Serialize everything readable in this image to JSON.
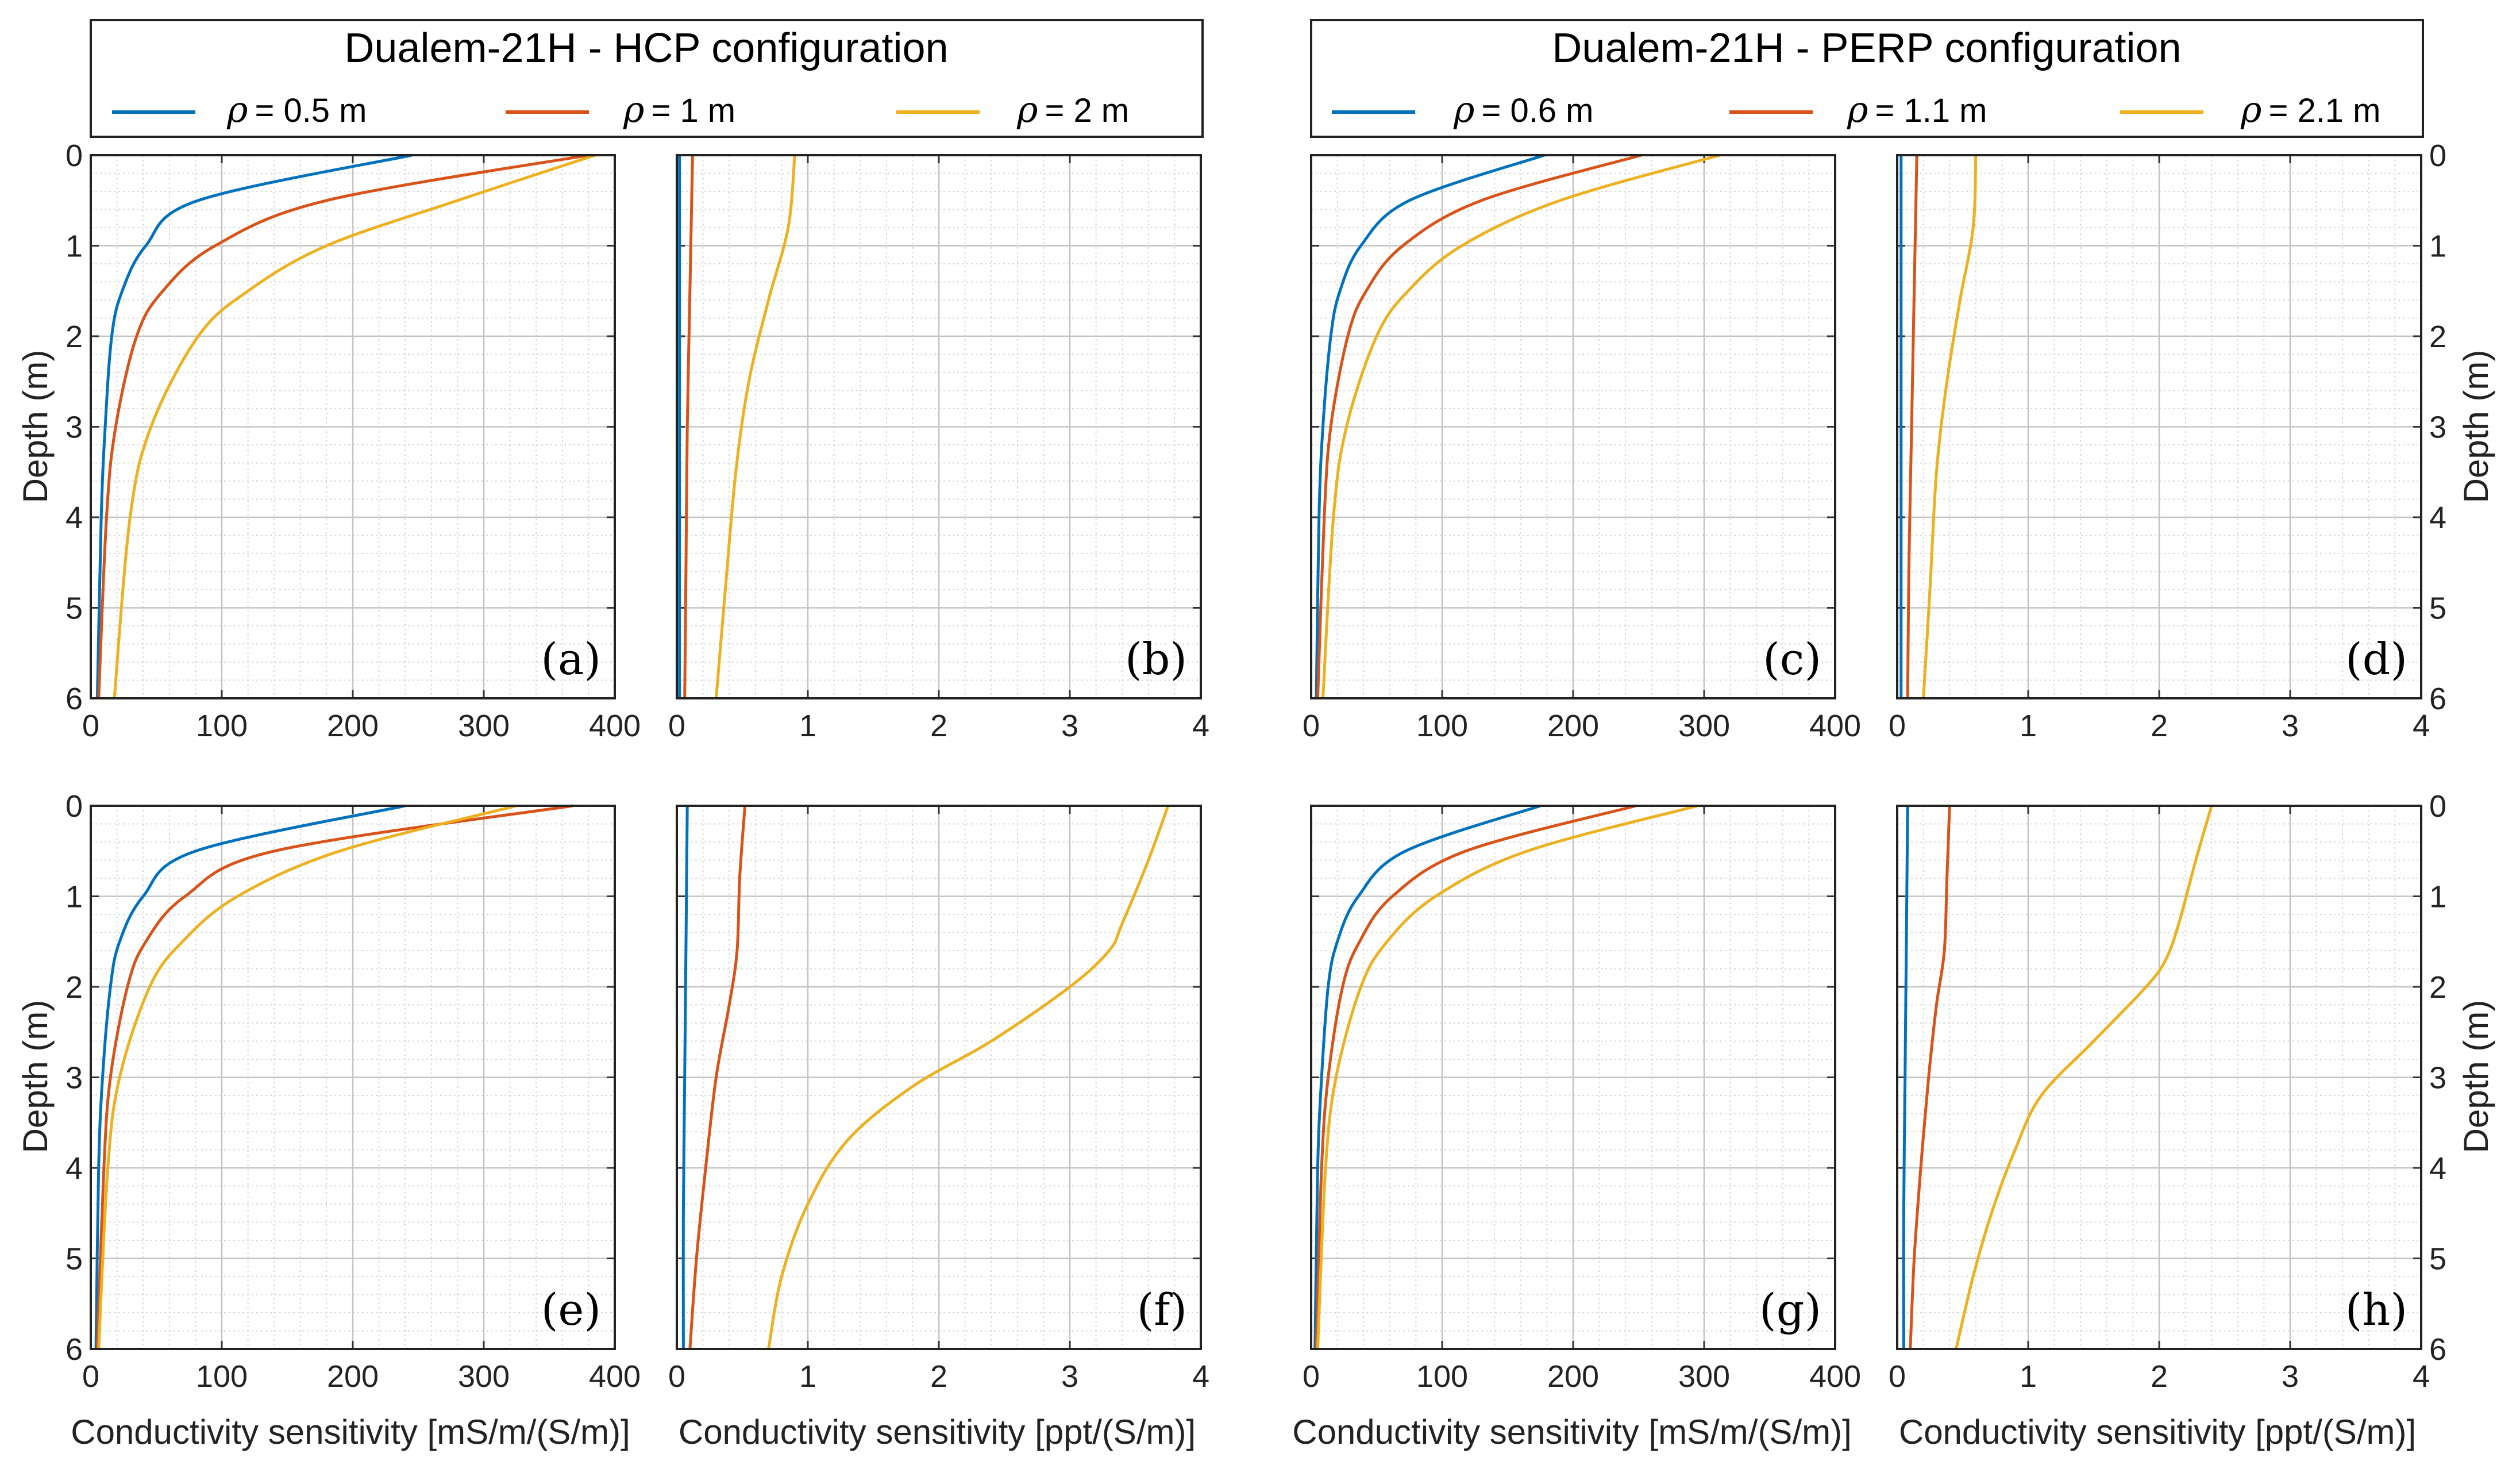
{
  "figure": {
    "left_panel_title": "Dualem-21H - HCP configuration",
    "right_panel_title": "Dualem-21H - PERP configuration",
    "ylabel": "Depth (m)",
    "xlabel_ecs": "Conductivity sensitivity [mS/m/(S/m)]",
    "xlabel_ppt": "Conductivity sensitivity [ppt/(S/m)]",
    "colors": {
      "blue": "#0072BD",
      "red": "#D95319",
      "yellow": "#EDB120"
    }
  },
  "legends": {
    "hcp": [
      {
        "symbol": "ρ",
        "text": "= 0.5 m",
        "color": "#0072BD"
      },
      {
        "symbol": "ρ",
        "text": "= 1 m",
        "color": "#D95319"
      },
      {
        "symbol": "ρ",
        "text": "= 2 m",
        "color": "#EDB120"
      }
    ],
    "perp": [
      {
        "symbol": "ρ",
        "text": "= 0.6 m",
        "color": "#0072BD"
      },
      {
        "symbol": "ρ",
        "text": "= 1.1 m",
        "color": "#D95319"
      },
      {
        "symbol": "ρ",
        "text": "= 2.1 m",
        "color": "#EDB120"
      }
    ]
  },
  "chart_data": [
    {
      "panel": "(a)",
      "type": "line",
      "configuration": "HCP",
      "xlim": [
        0,
        400
      ],
      "ylim": [
        0,
        6
      ],
      "xticks": [
        0,
        100,
        200,
        300,
        400
      ],
      "yticks": [
        0,
        1,
        2,
        3,
        4,
        5,
        6
      ],
      "series": [
        {
          "name": "ρ = 0.5 m",
          "color": "#0072BD",
          "x": [
            245,
            82,
            42,
            24,
            16,
            11,
            8,
            5
          ],
          "y": [
            0,
            0.5,
            1,
            1.5,
            2,
            3,
            4,
            6
          ]
        },
        {
          "name": "ρ = 1 m",
          "color": "#D95319",
          "x": [
            380,
            180,
            95,
            55,
            35,
            19,
            12,
            6
          ],
          "y": [
            0,
            0.5,
            1,
            1.5,
            2,
            3,
            4,
            6
          ]
        },
        {
          "name": "ρ = 2 m",
          "color": "#EDB120",
          "x": [
            385,
            280,
            180,
            120,
            82,
            46,
            30,
            18
          ],
          "y": [
            0,
            0.5,
            1,
            1.5,
            2,
            3,
            4,
            6
          ]
        }
      ]
    },
    {
      "panel": "(b)",
      "type": "line",
      "configuration": "HCP",
      "xlim": [
        0,
        4
      ],
      "ylim": [
        0,
        6
      ],
      "xticks": [
        0,
        1,
        2,
        3,
        4
      ],
      "yticks": [
        0,
        1,
        2,
        3,
        4,
        5,
        6
      ],
      "series": [
        {
          "name": "ρ = 0.5 m",
          "color": "#0072BD",
          "x": [
            0.02,
            0.02,
            0.02,
            0.02
          ],
          "y": [
            0,
            2,
            4,
            6
          ]
        },
        {
          "name": "ρ = 1 m",
          "color": "#D95319",
          "x": [
            0.12,
            0.1,
            0.08,
            0.07,
            0.06
          ],
          "y": [
            0,
            1.5,
            3,
            4.5,
            6
          ]
        },
        {
          "name": "ρ = 2 m",
          "color": "#EDB120",
          "x": [
            0.9,
            0.85,
            0.7,
            0.55,
            0.45,
            0.37,
            0.3
          ],
          "y": [
            0,
            0.8,
            1.6,
            2.5,
            3.5,
            4.8,
            6
          ]
        }
      ]
    },
    {
      "panel": "(c)",
      "type": "line",
      "configuration": "PERP",
      "xlim": [
        0,
        400
      ],
      "ylim": [
        0,
        6
      ],
      "xticks": [
        0,
        100,
        200,
        300,
        400
      ],
      "yticks": [
        0,
        1,
        2,
        3,
        4,
        5,
        6
      ],
      "series": [
        {
          "name": "ρ = 0.6 m",
          "color": "#0072BD",
          "x": [
            178,
            75,
            38,
            22,
            15,
            9,
            6,
            4
          ],
          "y": [
            0,
            0.5,
            1,
            1.5,
            2,
            3,
            4,
            6
          ]
        },
        {
          "name": "ρ = 1.1 m",
          "color": "#D95319",
          "x": [
            252,
            130,
            70,
            42,
            28,
            15,
            10,
            5
          ],
          "y": [
            0,
            0.5,
            1,
            1.5,
            2,
            3,
            4,
            6
          ]
        },
        {
          "name": "ρ = 2.1 m",
          "color": "#EDB120",
          "x": [
            312,
            190,
            115,
            74,
            50,
            27,
            17,
            9
          ],
          "y": [
            0,
            0.5,
            1,
            1.5,
            2,
            3,
            4,
            6
          ]
        }
      ]
    },
    {
      "panel": "(d)",
      "type": "line",
      "configuration": "PERP",
      "xlim": [
        0,
        4
      ],
      "ylim": [
        0,
        6
      ],
      "xticks": [
        0,
        1,
        2,
        3,
        4
      ],
      "yticks": [
        0,
        1,
        2,
        3,
        4,
        5,
        6
      ],
      "series": [
        {
          "name": "ρ = 0.6 m",
          "color": "#0072BD",
          "x": [
            0.03,
            0.03,
            0.03,
            0.03
          ],
          "y": [
            0,
            2,
            4,
            6
          ]
        },
        {
          "name": "ρ = 1.1 m",
          "color": "#D95319",
          "x": [
            0.15,
            0.13,
            0.11,
            0.09,
            0.08
          ],
          "y": [
            0,
            1.5,
            3,
            4.5,
            6
          ]
        },
        {
          "name": "ρ = 2.1 m",
          "color": "#EDB120",
          "x": [
            0.6,
            0.58,
            0.48,
            0.38,
            0.3,
            0.25,
            0.2
          ],
          "y": [
            0,
            0.8,
            1.6,
            2.5,
            3.5,
            4.8,
            6
          ]
        }
      ]
    },
    {
      "panel": "(e)",
      "type": "line",
      "configuration": "HCP",
      "xlim": [
        0,
        400
      ],
      "ylim": [
        0,
        6
      ],
      "xticks": [
        0,
        100,
        200,
        300,
        400
      ],
      "yticks": [
        0,
        1,
        2,
        3,
        4,
        5,
        6
      ],
      "series": [
        {
          "name": "ρ = 0.5 m",
          "color": "#0072BD",
          "x": [
            240,
            80,
            40,
            22,
            15,
            9,
            6,
            4
          ],
          "y": [
            0,
            0.5,
            1,
            1.5,
            2,
            3,
            4,
            6
          ]
        },
        {
          "name": "ρ = 1 m",
          "color": "#D95319",
          "x": [
            368,
            140,
            72,
            42,
            28,
            15,
            10,
            5
          ],
          "y": [
            0,
            0.5,
            1,
            1.5,
            2,
            3,
            4,
            6
          ]
        },
        {
          "name": "ρ = 2 m",
          "color": "#EDB120",
          "x": [
            325,
            190,
            112,
            70,
            45,
            22,
            13,
            6
          ],
          "y": [
            0,
            0.5,
            1,
            1.5,
            2,
            3,
            4,
            6
          ]
        }
      ]
    },
    {
      "panel": "(f)",
      "type": "line",
      "configuration": "HCP",
      "xlim": [
        0,
        4
      ],
      "ylim": [
        0,
        6
      ],
      "xticks": [
        0,
        1,
        2,
        3,
        4
      ],
      "yticks": [
        0,
        1,
        2,
        3,
        4,
        5,
        6
      ],
      "series": [
        {
          "name": "ρ = 0.5 m",
          "color": "#0072BD",
          "x": [
            0.08,
            0.07,
            0.06,
            0.05,
            0.05
          ],
          "y": [
            0,
            1.5,
            3,
            4.5,
            6
          ]
        },
        {
          "name": "ρ = 1 m",
          "color": "#D95319",
          "x": [
            0.52,
            0.48,
            0.46,
            0.4,
            0.3,
            0.22,
            0.15,
            0.1
          ],
          "y": [
            0,
            0.8,
            1.6,
            2.2,
            3,
            4,
            5,
            6
          ]
        },
        {
          "name": "ρ = 2 m",
          "color": "#EDB120",
          "x": [
            3.75,
            3.6,
            3.4,
            3.3,
            3.0,
            2.4,
            1.8,
            1.3,
            1.0,
            0.8,
            0.7
          ],
          "y": [
            0,
            0.6,
            1.3,
            1.6,
            2.0,
            2.6,
            3.1,
            3.7,
            4.4,
            5.2,
            6
          ]
        }
      ]
    },
    {
      "panel": "(g)",
      "type": "line",
      "configuration": "PERP",
      "xlim": [
        0,
        400
      ],
      "ylim": [
        0,
        6
      ],
      "xticks": [
        0,
        100,
        200,
        300,
        400
      ],
      "yticks": [
        0,
        1,
        2,
        3,
        4,
        5,
        6
      ],
      "series": [
        {
          "name": "ρ = 0.6 m",
          "color": "#0072BD",
          "x": [
            175,
            72,
            36,
            20,
            13,
            8,
            5,
            3
          ],
          "y": [
            0,
            0.5,
            1,
            1.5,
            2,
            3,
            4,
            6
          ]
        },
        {
          "name": "ρ = 1.1 m",
          "color": "#D95319",
          "x": [
            248,
            118,
            62,
            37,
            24,
            13,
            8,
            4
          ],
          "y": [
            0,
            0.5,
            1,
            1.5,
            2,
            3,
            4,
            6
          ]
        },
        {
          "name": "ρ = 2.1 m",
          "color": "#EDB120",
          "x": [
            295,
            165,
            95,
            58,
            38,
            19,
            11,
            5
          ],
          "y": [
            0,
            0.5,
            1,
            1.5,
            2,
            3,
            4,
            6
          ]
        }
      ]
    },
    {
      "panel": "(h)",
      "type": "line",
      "configuration": "PERP",
      "xlim": [
        0,
        4
      ],
      "ylim": [
        0,
        6
      ],
      "xticks": [
        0,
        1,
        2,
        3,
        4
      ],
      "yticks": [
        0,
        1,
        2,
        3,
        4,
        5,
        6
      ],
      "series": [
        {
          "name": "ρ = 0.6 m",
          "color": "#0072BD",
          "x": [
            0.08,
            0.07,
            0.06,
            0.05,
            0.05
          ],
          "y": [
            0,
            1.5,
            3,
            4.5,
            6
          ]
        },
        {
          "name": "ρ = 1.1 m",
          "color": "#D95319",
          "x": [
            0.4,
            0.38,
            0.36,
            0.3,
            0.24,
            0.18,
            0.13,
            0.1
          ],
          "y": [
            0,
            0.8,
            1.6,
            2.2,
            3,
            4,
            5,
            6
          ]
        },
        {
          "name": "ρ = 2.1 m",
          "color": "#EDB120",
          "x": [
            2.4,
            2.28,
            2.15,
            2.05,
            1.9,
            1.5,
            1.1,
            0.9,
            0.72,
            0.58,
            0.45
          ],
          "y": [
            0,
            0.6,
            1.3,
            1.7,
            2.0,
            2.6,
            3.2,
            3.8,
            4.5,
            5.2,
            6
          ]
        }
      ]
    }
  ]
}
